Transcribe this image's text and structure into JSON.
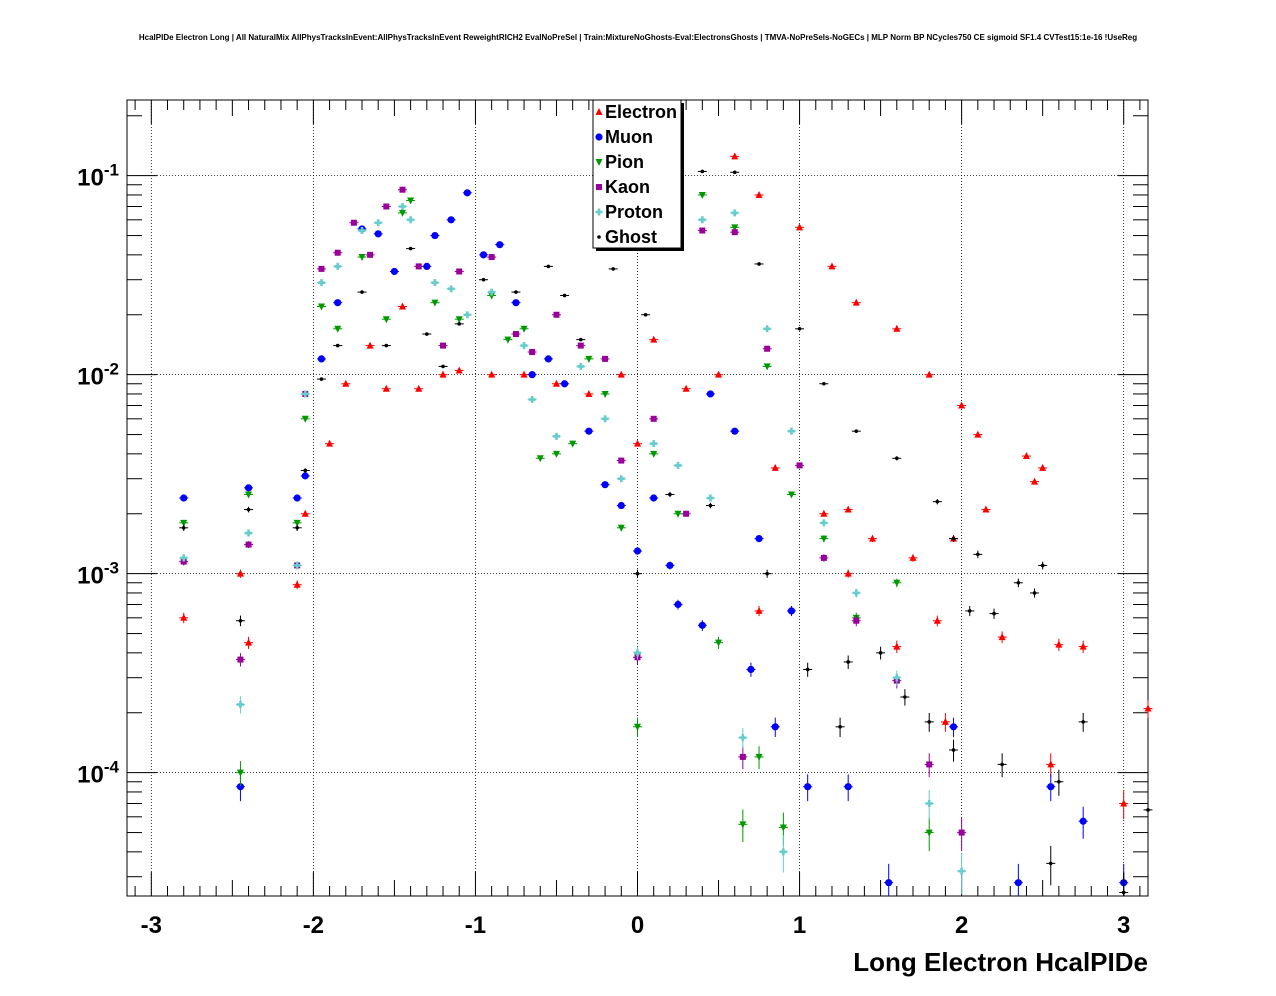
{
  "chart_data": {
    "type": "scatter",
    "title": "HcalPIDe Electron Long | All NaturalMix AllPhysTracksInEvent:AllPhysTracksInEvent ReweightRICH2 EvalNoPreSel | Train:MixtureNoGhosts-Eval:ElectronsGhosts | TMVA-NoPreSels-NoGECs | MLP Norm BP NCycles750 CE sigmoid SF1.4 CVTest15:1e-16 !UseReg",
    "xlabel": "Long Electron HcalPIDe",
    "ylabel": "",
    "xlim": [
      -3.15,
      3.15
    ],
    "ylim": [
      2.4e-05,
      0.24
    ],
    "yscale": "log",
    "grid": true,
    "legend_position": "top-center",
    "x_ticks": [
      "-3",
      "-2",
      "-1",
      "0",
      "1",
      "2",
      "3"
    ],
    "y_ticks": [
      {
        "value": 0.1,
        "base": "10",
        "exp": "-1"
      },
      {
        "value": 0.01,
        "base": "10",
        "exp": "-2"
      },
      {
        "value": 0.001,
        "base": "10",
        "exp": "-3"
      },
      {
        "value": 0.0001,
        "base": "10",
        "exp": "-4"
      }
    ],
    "series": [
      {
        "name": "Electron",
        "color": "#ff0000",
        "marker": "triangle-up",
        "points": [
          [
            -2.8,
            0.0006
          ],
          [
            -2.45,
            0.001
          ],
          [
            -2.4,
            0.00045
          ],
          [
            -2.1,
            0.00088
          ],
          [
            -2.05,
            0.002
          ],
          [
            -1.9,
            0.0045
          ],
          [
            -1.8,
            0.009
          ],
          [
            -1.65,
            0.014
          ],
          [
            -1.55,
            0.0085
          ],
          [
            -1.45,
            0.022
          ],
          [
            -1.35,
            0.0085
          ],
          [
            -1.2,
            0.01
          ],
          [
            -1.1,
            0.0105
          ],
          [
            -0.9,
            0.01
          ],
          [
            -0.7,
            0.01
          ],
          [
            -0.5,
            0.009
          ],
          [
            -0.3,
            0.008
          ],
          [
            -0.1,
            0.01
          ],
          [
            0.0,
            0.0045
          ],
          [
            0.1,
            0.015
          ],
          [
            0.3,
            0.0085
          ],
          [
            0.5,
            0.01
          ],
          [
            0.6,
            0.125
          ],
          [
            0.75,
            0.08
          ],
          [
            1.0,
            0.055
          ],
          [
            1.2,
            0.035
          ],
          [
            1.35,
            0.023
          ],
          [
            1.6,
            0.017
          ],
          [
            1.8,
            0.01
          ],
          [
            2.0,
            0.007
          ],
          [
            2.1,
            0.005
          ],
          [
            2.4,
            0.0039
          ],
          [
            2.5,
            0.0034
          ],
          [
            2.45,
            0.0029
          ],
          [
            2.15,
            0.0021
          ],
          [
            1.95,
            0.0015
          ],
          [
            1.7,
            0.0012
          ],
          [
            1.45,
            0.0015
          ],
          [
            1.3,
            0.0021
          ],
          [
            1.15,
            0.002
          ],
          [
            0.85,
            0.0034
          ],
          [
            0.75,
            0.00065
          ],
          [
            1.3,
            0.001
          ],
          [
            1.6,
            0.00043
          ],
          [
            1.85,
            0.00058
          ],
          [
            2.25,
            0.00048
          ],
          [
            2.6,
            0.00044
          ],
          [
            2.75,
            0.00043
          ],
          [
            3.15,
            0.00021
          ],
          [
            2.55,
            0.00011
          ],
          [
            1.9,
            0.00018
          ],
          [
            3.0,
            7e-05
          ]
        ]
      },
      {
        "name": "Muon",
        "color": "#0000ff",
        "marker": "circle",
        "points": [
          [
            -2.8,
            0.0024
          ],
          [
            -2.4,
            0.0027
          ],
          [
            -2.45,
            8.5e-05
          ],
          [
            -2.1,
            0.0024
          ],
          [
            -2.05,
            0.0031
          ],
          [
            -1.95,
            0.012
          ],
          [
            -1.85,
            0.023
          ],
          [
            -1.7,
            0.054
          ],
          [
            -1.6,
            0.051
          ],
          [
            -1.5,
            0.033
          ],
          [
            -1.3,
            0.035
          ],
          [
            -1.25,
            0.05
          ],
          [
            -1.15,
            0.06
          ],
          [
            -1.05,
            0.082
          ],
          [
            -0.95,
            0.04
          ],
          [
            -0.85,
            0.045
          ],
          [
            -0.75,
            0.023
          ],
          [
            -0.65,
            0.01
          ],
          [
            -0.55,
            0.012
          ],
          [
            -0.45,
            0.009
          ],
          [
            -0.3,
            0.0052
          ],
          [
            -0.2,
            0.0028
          ],
          [
            -0.1,
            0.0022
          ],
          [
            0.0,
            0.0013
          ],
          [
            0.1,
            0.0024
          ],
          [
            0.2,
            0.0011
          ],
          [
            0.25,
            0.0007
          ],
          [
            0.4,
            0.00055
          ],
          [
            0.45,
            0.008
          ],
          [
            0.6,
            0.0052
          ],
          [
            0.75,
            0.0015
          ],
          [
            0.95,
            0.00065
          ],
          [
            0.7,
            0.00033
          ],
          [
            0.85,
            0.00017
          ],
          [
            1.05,
            8.5e-05
          ],
          [
            1.3,
            8.5e-05
          ],
          [
            1.55,
            2.8e-05
          ],
          [
            1.95,
            0.00017
          ],
          [
            2.35,
            2.8e-05
          ],
          [
            2.55,
            8.5e-05
          ],
          [
            2.75,
            5.7e-05
          ],
          [
            3.0,
            2.8e-05
          ]
        ]
      },
      {
        "name": "Pion",
        "color": "#009900",
        "marker": "triangle-down",
        "points": [
          [
            -2.8,
            0.0018
          ],
          [
            -2.4,
            0.0025
          ],
          [
            -2.45,
            0.0001
          ],
          [
            -2.1,
            0.0018
          ],
          [
            -2.05,
            0.006
          ],
          [
            -1.95,
            0.022
          ],
          [
            -1.85,
            0.017
          ],
          [
            -1.7,
            0.039
          ],
          [
            -1.55,
            0.019
          ],
          [
            -1.45,
            0.065
          ],
          [
            -1.4,
            0.075
          ],
          [
            -1.25,
            0.023
          ],
          [
            -1.1,
            0.019
          ],
          [
            -0.9,
            0.025
          ],
          [
            -0.8,
            0.015
          ],
          [
            -0.7,
            0.017
          ],
          [
            -0.6,
            0.0038
          ],
          [
            -0.5,
            0.004
          ],
          [
            -0.4,
            0.0045
          ],
          [
            -0.3,
            0.012
          ],
          [
            -0.2,
            0.008
          ],
          [
            -0.1,
            0.0017
          ],
          [
            0.0,
            0.00017
          ],
          [
            0.1,
            0.004
          ],
          [
            0.25,
            0.002
          ],
          [
            0.4,
            0.08
          ],
          [
            0.5,
            0.00045
          ],
          [
            0.6,
            0.055
          ],
          [
            0.8,
            0.011
          ],
          [
            0.95,
            0.0025
          ],
          [
            1.15,
            0.0015
          ],
          [
            0.65,
            5.5e-05
          ],
          [
            0.9,
            5.3e-05
          ],
          [
            1.35,
            0.0006
          ],
          [
            1.6,
            0.0009
          ],
          [
            1.8,
            5e-05
          ],
          [
            0.75,
            0.00012
          ]
        ]
      },
      {
        "name": "Kaon",
        "color": "#990099",
        "marker": "square",
        "points": [
          [
            -2.8,
            0.00115
          ],
          [
            -2.4,
            0.0014
          ],
          [
            -2.45,
            0.00037
          ],
          [
            -2.1,
            0.0011
          ],
          [
            -2.05,
            0.008
          ],
          [
            -1.95,
            0.034
          ],
          [
            -1.85,
            0.041
          ],
          [
            -1.75,
            0.058
          ],
          [
            -1.65,
            0.04
          ],
          [
            -1.55,
            0.07
          ],
          [
            -1.45,
            0.085
          ],
          [
            -1.35,
            0.035
          ],
          [
            -1.2,
            0.014
          ],
          [
            -1.1,
            0.033
          ],
          [
            -0.9,
            0.039
          ],
          [
            -0.75,
            0.016
          ],
          [
            -0.65,
            0.013
          ],
          [
            -0.5,
            0.02
          ],
          [
            -0.35,
            0.014
          ],
          [
            -0.2,
            0.012
          ],
          [
            -0.1,
            0.0037
          ],
          [
            0.0,
            0.00038
          ],
          [
            0.1,
            0.006
          ],
          [
            0.3,
            0.002
          ],
          [
            0.4,
            0.053
          ],
          [
            0.6,
            0.052
          ],
          [
            0.8,
            0.0135
          ],
          [
            1.0,
            0.0035
          ],
          [
            1.15,
            0.0012
          ],
          [
            0.65,
            0.00012
          ],
          [
            1.35,
            0.00058
          ],
          [
            1.6,
            0.00029
          ],
          [
            1.8,
            0.00011
          ],
          [
            2.0,
            5e-05
          ]
        ]
      },
      {
        "name": "Proton",
        "color": "#66cccc",
        "marker": "plus",
        "points": [
          [
            -2.8,
            0.0012
          ],
          [
            -2.4,
            0.0016
          ],
          [
            -2.45,
            0.00022
          ],
          [
            -2.1,
            0.0011
          ],
          [
            -2.05,
            0.008
          ],
          [
            -1.95,
            0.029
          ],
          [
            -1.85,
            0.035
          ],
          [
            -1.7,
            0.053
          ],
          [
            -1.6,
            0.058
          ],
          [
            -1.45,
            0.07
          ],
          [
            -1.4,
            0.06
          ],
          [
            -1.25,
            0.029
          ],
          [
            -1.15,
            0.027
          ],
          [
            -1.05,
            0.02
          ],
          [
            -0.9,
            0.026
          ],
          [
            -0.7,
            0.014
          ],
          [
            -0.65,
            0.0075
          ],
          [
            -0.5,
            0.0049
          ],
          [
            -0.35,
            0.011
          ],
          [
            -0.2,
            0.006
          ],
          [
            -0.1,
            0.003
          ],
          [
            0.0,
            0.0004
          ],
          [
            0.1,
            0.0045
          ],
          [
            0.25,
            0.0035
          ],
          [
            0.4,
            0.06
          ],
          [
            0.45,
            0.0024
          ],
          [
            0.6,
            0.065
          ],
          [
            0.8,
            0.017
          ],
          [
            0.95,
            0.0052
          ],
          [
            1.15,
            0.0018
          ],
          [
            1.35,
            0.0008
          ],
          [
            0.65,
            0.00015
          ],
          [
            1.6,
            0.0003
          ],
          [
            1.8,
            7e-05
          ],
          [
            2.0,
            3.2e-05
          ],
          [
            0.9,
            4e-05
          ]
        ]
      },
      {
        "name": "Ghost",
        "color": "#000000",
        "marker": "dot",
        "points": [
          [
            -2.8,
            0.0017
          ],
          [
            -2.4,
            0.0021
          ],
          [
            -2.45,
            0.00058
          ],
          [
            -2.1,
            0.0017
          ],
          [
            -2.05,
            0.0033
          ],
          [
            -1.95,
            0.0095
          ],
          [
            -1.85,
            0.014
          ],
          [
            -1.7,
            0.026
          ],
          [
            -1.55,
            0.014
          ],
          [
            -1.4,
            0.043
          ],
          [
            -1.3,
            0.016
          ],
          [
            -1.2,
            0.011
          ],
          [
            -1.1,
            0.018
          ],
          [
            -0.95,
            0.03
          ],
          [
            -0.75,
            0.026
          ],
          [
            -0.55,
            0.035
          ],
          [
            -0.45,
            0.025
          ],
          [
            -0.35,
            0.015
          ],
          [
            -0.15,
            0.034
          ],
          [
            0.0,
            0.001
          ],
          [
            0.05,
            0.02
          ],
          [
            0.2,
            0.0025
          ],
          [
            0.4,
            0.105
          ],
          [
            0.45,
            0.0022
          ],
          [
            0.6,
            0.104
          ],
          [
            0.75,
            0.036
          ],
          [
            1.0,
            0.017
          ],
          [
            1.15,
            0.009
          ],
          [
            1.35,
            0.0052
          ],
          [
            1.6,
            0.0038
          ],
          [
            1.85,
            0.0023
          ],
          [
            1.95,
            0.0015
          ],
          [
            2.1,
            0.00125
          ],
          [
            2.35,
            0.0009
          ],
          [
            2.5,
            0.0011
          ],
          [
            2.2,
            0.00063
          ],
          [
            2.05,
            0.00065
          ],
          [
            2.45,
            0.0008
          ],
          [
            0.8,
            0.001
          ],
          [
            1.05,
            0.00033
          ],
          [
            1.3,
            0.00036
          ],
          [
            1.5,
            0.0004
          ],
          [
            1.65,
            0.00024
          ],
          [
            1.8,
            0.00018
          ],
          [
            1.95,
            0.00013
          ],
          [
            2.25,
            0.00011
          ],
          [
            2.6,
            9e-05
          ],
          [
            2.75,
            0.00018
          ],
          [
            3.15,
            6.5e-05
          ],
          [
            2.55,
            3.5e-05
          ],
          [
            3.0,
            2.5e-05
          ],
          [
            1.25,
            0.00017
          ]
        ]
      }
    ]
  }
}
